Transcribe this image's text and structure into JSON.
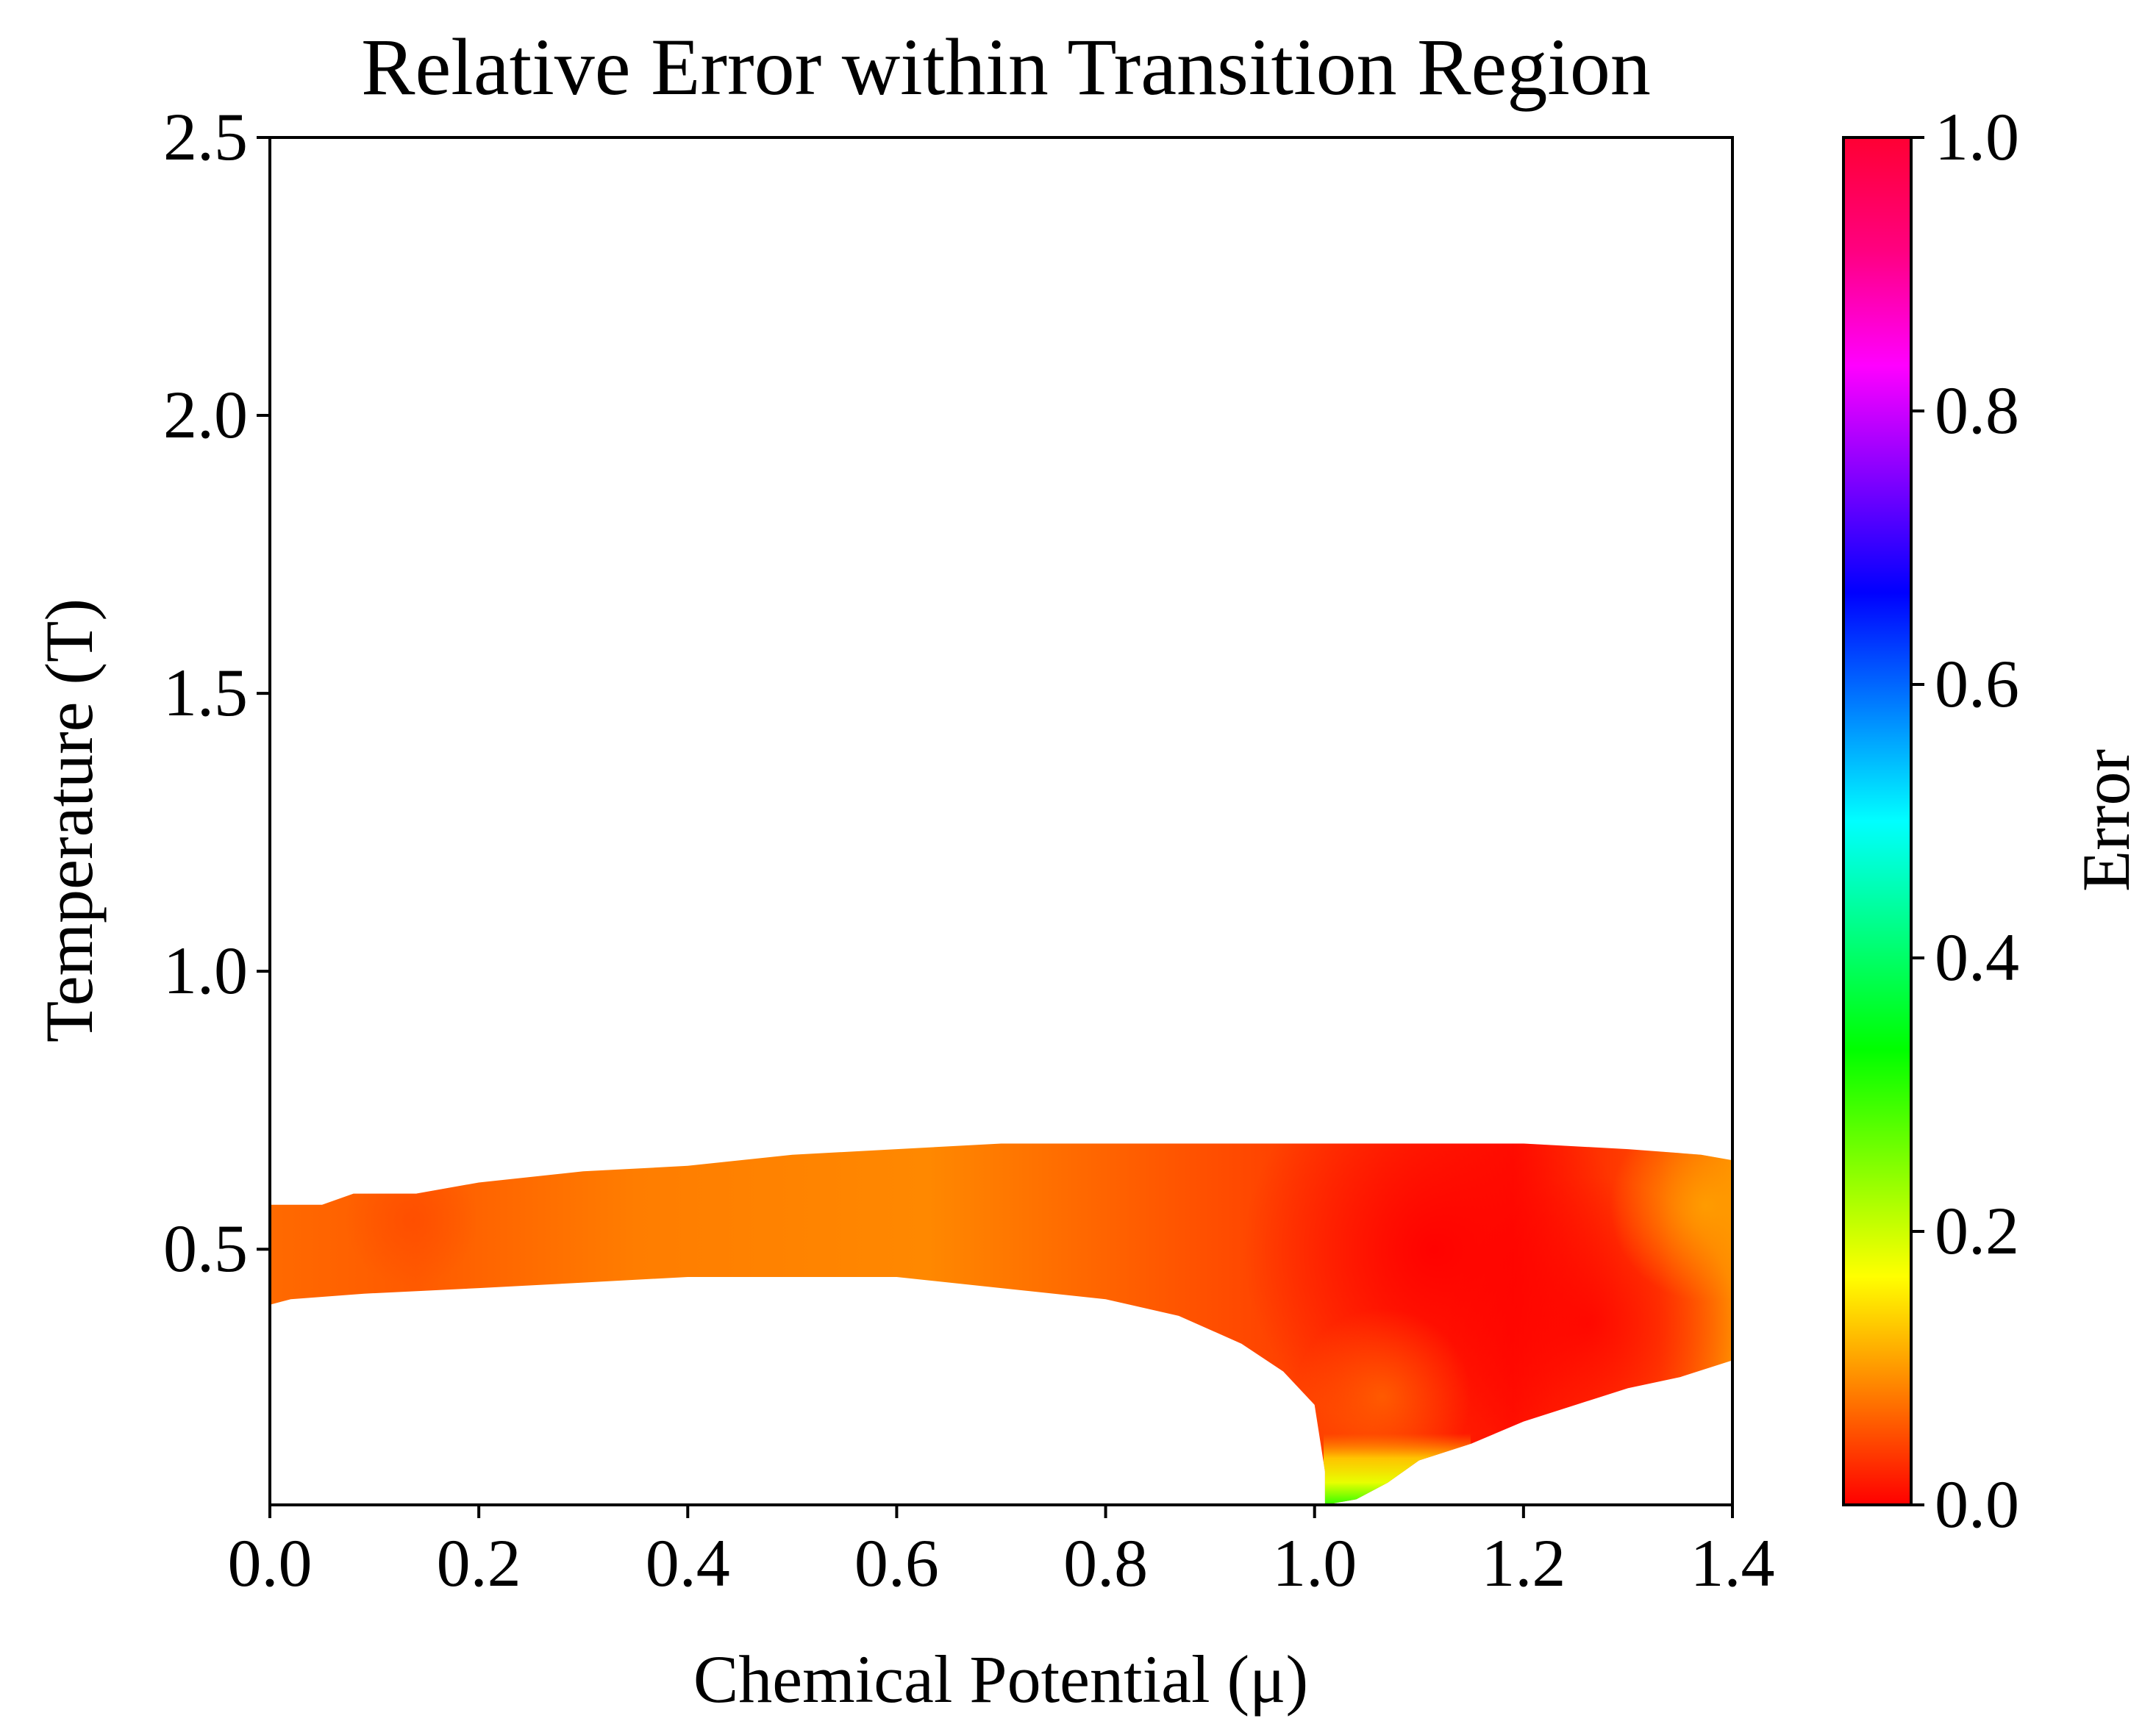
{
  "chart_data": {
    "type": "heatmap",
    "title": "Relative Error within Transition Region",
    "xlabel": "Chemical Potential (μ)",
    "ylabel": "Temperature (T)",
    "xlim": [
      0.0,
      1.4
    ],
    "ylim": [
      0.04,
      2.5
    ],
    "x_ticks": [
      0.0,
      0.2,
      0.4,
      0.6,
      0.8,
      1.0,
      1.2,
      1.4
    ],
    "x_tick_labels": [
      "0.0",
      "0.2",
      "0.4",
      "0.6",
      "0.8",
      "1.0",
      "1.2",
      "1.4"
    ],
    "y_ticks": [
      0.5,
      1.0,
      1.5,
      2.0,
      2.5
    ],
    "y_tick_labels": [
      "0.5",
      "1.0",
      "1.5",
      "2.0",
      "2.5"
    ],
    "colorbar": {
      "label": "Error",
      "range": [
        0.0,
        1.0
      ],
      "ticks": [
        0.0,
        0.2,
        0.4,
        0.6,
        0.8,
        1.0
      ],
      "tick_labels": [
        "0.0",
        "0.2",
        "0.4",
        "0.6",
        "0.8",
        "1.0"
      ],
      "colormap": "hsv",
      "stops": [
        {
          "value": 0.0,
          "color": "#ff0000"
        },
        {
          "value": 0.083,
          "color": "#ff7f00"
        },
        {
          "value": 0.167,
          "color": "#ffff00"
        },
        {
          "value": 0.25,
          "color": "#80ff00"
        },
        {
          "value": 0.333,
          "color": "#00ff00"
        },
        {
          "value": 0.417,
          "color": "#00ff80"
        },
        {
          "value": 0.5,
          "color": "#00ffff"
        },
        {
          "value": 0.583,
          "color": "#0080ff"
        },
        {
          "value": 0.667,
          "color": "#0000ff"
        },
        {
          "value": 0.75,
          "color": "#8000ff"
        },
        {
          "value": 0.833,
          "color": "#ff00ff"
        },
        {
          "value": 0.917,
          "color": "#ff0080"
        },
        {
          "value": 1.0,
          "color": "#ff0033"
        }
      ]
    },
    "region": {
      "upper_boundary": [
        {
          "x": 0.0,
          "y": 0.58
        },
        {
          "x": 0.05,
          "y": 0.58
        },
        {
          "x": 0.08,
          "y": 0.6
        },
        {
          "x": 0.14,
          "y": 0.6
        },
        {
          "x": 0.2,
          "y": 0.62
        },
        {
          "x": 0.3,
          "y": 0.64
        },
        {
          "x": 0.4,
          "y": 0.65
        },
        {
          "x": 0.5,
          "y": 0.67
        },
        {
          "x": 0.6,
          "y": 0.68
        },
        {
          "x": 0.7,
          "y": 0.69
        },
        {
          "x": 0.8,
          "y": 0.69
        },
        {
          "x": 0.9,
          "y": 0.69
        },
        {
          "x": 1.0,
          "y": 0.69
        },
        {
          "x": 1.1,
          "y": 0.69
        },
        {
          "x": 1.2,
          "y": 0.69
        },
        {
          "x": 1.3,
          "y": 0.68
        },
        {
          "x": 1.37,
          "y": 0.67
        },
        {
          "x": 1.4,
          "y": 0.66
        }
      ],
      "lower_boundary": [
        {
          "x": 0.0,
          "y": 0.4
        },
        {
          "x": 0.02,
          "y": 0.41
        },
        {
          "x": 0.09,
          "y": 0.42
        },
        {
          "x": 0.2,
          "y": 0.43
        },
        {
          "x": 0.3,
          "y": 0.44
        },
        {
          "x": 0.4,
          "y": 0.45
        },
        {
          "x": 0.6,
          "y": 0.45
        },
        {
          "x": 0.7,
          "y": 0.43
        },
        {
          "x": 0.8,
          "y": 0.41
        },
        {
          "x": 0.87,
          "y": 0.38
        },
        {
          "x": 0.93,
          "y": 0.33
        },
        {
          "x": 0.97,
          "y": 0.28
        },
        {
          "x": 1.0,
          "y": 0.22
        },
        {
          "x": 1.01,
          "y": 0.1
        },
        {
          "x": 1.01,
          "y": 0.04
        },
        {
          "x": 1.04,
          "y": 0.05
        },
        {
          "x": 1.07,
          "y": 0.08
        },
        {
          "x": 1.1,
          "y": 0.12
        },
        {
          "x": 1.15,
          "y": 0.15
        },
        {
          "x": 1.2,
          "y": 0.19
        },
        {
          "x": 1.25,
          "y": 0.22
        },
        {
          "x": 1.3,
          "y": 0.25
        },
        {
          "x": 1.35,
          "y": 0.27
        },
        {
          "x": 1.4,
          "y": 0.3
        }
      ]
    },
    "error_points": [
      {
        "x": 0.05,
        "y": 0.5,
        "error": 0.07
      },
      {
        "x": 0.2,
        "y": 0.53,
        "error": 0.09
      },
      {
        "x": 0.45,
        "y": 0.55,
        "error": 0.1
      },
      {
        "x": 0.7,
        "y": 0.56,
        "error": 0.07
      },
      {
        "x": 0.9,
        "y": 0.58,
        "error": 0.05
      },
      {
        "x": 1.0,
        "y": 0.55,
        "error": 0.02
      },
      {
        "x": 1.12,
        "y": 0.5,
        "error": 0.0
      },
      {
        "x": 1.3,
        "y": 0.55,
        "error": 0.05
      },
      {
        "x": 1.37,
        "y": 0.58,
        "error": 0.1
      },
      {
        "x": 1.1,
        "y": 0.3,
        "error": 0.05
      },
      {
        "x": 1.25,
        "y": 0.35,
        "error": 0.03
      },
      {
        "x": 1.03,
        "y": 0.1,
        "error": 0.13
      },
      {
        "x": 1.03,
        "y": 0.05,
        "error": 0.3
      }
    ]
  }
}
